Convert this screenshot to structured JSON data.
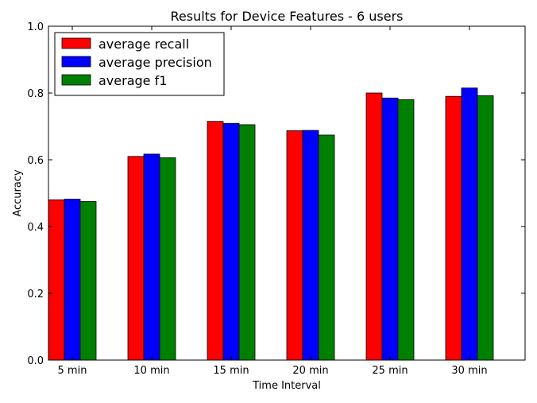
{
  "chart_data": {
    "type": "bar",
    "title": "Results for Device Features - 6 users",
    "xlabel": "Time Interval",
    "ylabel": "Accuracy",
    "ylim": [
      0.0,
      1.0
    ],
    "yticks": [
      "0.0",
      "0.2",
      "0.4",
      "0.6",
      "0.8",
      "1.0"
    ],
    "categories": [
      "5 min",
      "10 min",
      "15 min",
      "20 min",
      "25 min",
      "30 min"
    ],
    "series": [
      {
        "name": "average recall",
        "color": "#ff0000",
        "values": [
          0.48,
          0.61,
          0.715,
          0.687,
          0.8,
          0.79
        ]
      },
      {
        "name": "average precision",
        "color": "#0000ff",
        "values": [
          0.482,
          0.617,
          0.709,
          0.688,
          0.785,
          0.815
        ]
      },
      {
        "name": "average f1",
        "color": "#008000",
        "values": [
          0.475,
          0.606,
          0.705,
          0.674,
          0.78,
          0.792
        ]
      }
    ],
    "grid": false,
    "legend_position": "top-left"
  }
}
